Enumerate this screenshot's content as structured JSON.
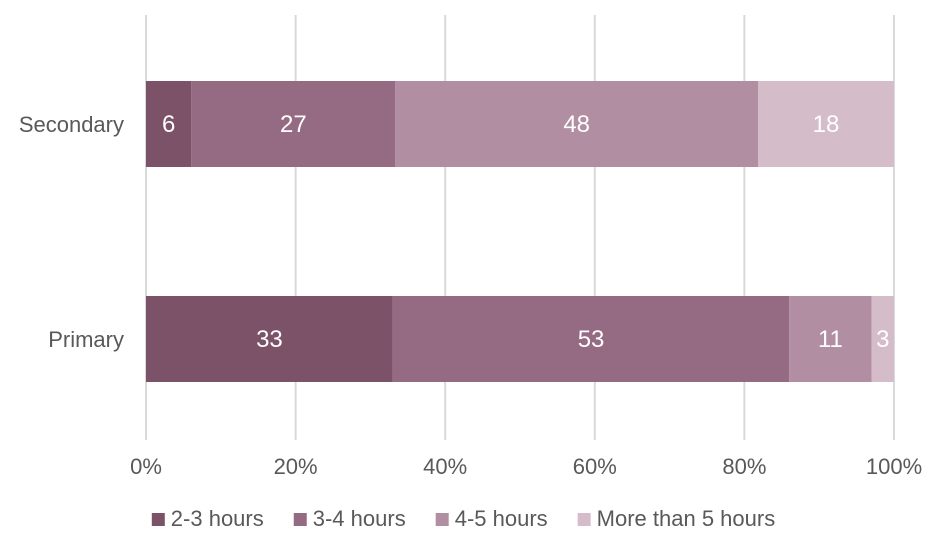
{
  "chart_data": {
    "type": "bar",
    "orientation": "horizontal",
    "stacked": "percent",
    "categories": [
      "Secondary",
      "Primary"
    ],
    "series": [
      {
        "name": "2-3 hours",
        "color": "#7c5268",
        "values": [
          6,
          33
        ]
      },
      {
        "name": "3-4 hours",
        "color": "#956a83",
        "values": [
          27,
          53
        ]
      },
      {
        "name": "4-5 hours",
        "color": "#b18ea1",
        "values": [
          48,
          11
        ]
      },
      {
        "name": "More than 5 hours",
        "color": "#d4bdc8",
        "values": [
          18,
          3
        ]
      }
    ],
    "x_ticks": [
      "0%",
      "20%",
      "40%",
      "60%",
      "80%",
      "100%"
    ],
    "xlim": [
      0,
      100
    ],
    "grid": "vertical",
    "legend": "bottom",
    "title": "",
    "xlabel": "",
    "ylabel": ""
  }
}
